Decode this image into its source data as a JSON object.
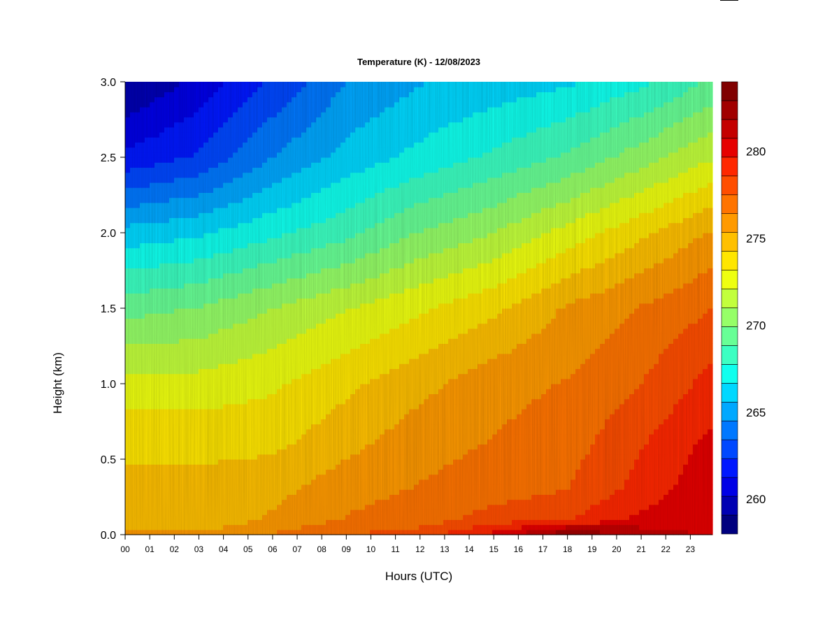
{
  "chart_data": {
    "type": "heatmap",
    "title": "Temperature (K) - 12/08/2023",
    "xlabel": "Hours (UTC)",
    "ylabel": "Height (km)",
    "x_ticks": [
      "00",
      "01",
      "02",
      "03",
      "04",
      "05",
      "06",
      "07",
      "08",
      "09",
      "10",
      "11",
      "12",
      "13",
      "14",
      "15",
      "16",
      "17",
      "18",
      "19",
      "20",
      "21",
      "22",
      "23"
    ],
    "y_ticks": [
      "0.0",
      "0.5",
      "1.0",
      "1.5",
      "2.0",
      "2.5",
      "3.0"
    ],
    "xlim": [
      0,
      23.9
    ],
    "ylim": [
      0,
      3.0
    ],
    "colorbar": {
      "label_values": [
        "260",
        "265",
        "270",
        "275",
        "280"
      ],
      "range": [
        258,
        284
      ],
      "colors": [
        "#00007f",
        "#0000b3",
        "#0000e6",
        "#0018ff",
        "#0048ff",
        "#0078ff",
        "#00a8ff",
        "#00d8ff",
        "#10ffee",
        "#3cffc2",
        "#68ff96",
        "#96ff68",
        "#c2ff3c",
        "#eeff10",
        "#ffe600",
        "#ffc000",
        "#ff9a00",
        "#ff7400",
        "#ff4e00",
        "#ff2800",
        "#e60000",
        "#c40000",
        "#a10000",
        "#800000"
      ]
    },
    "hours": [
      0,
      3,
      6,
      9,
      12,
      15,
      18,
      21,
      23.9
    ],
    "heights_km": [
      0.0,
      0.1,
      0.3,
      0.6,
      1.0,
      1.5,
      2.0,
      2.5,
      3.0
    ],
    "values_K": [
      [
        275.5,
        275.5,
        276.5,
        277.5,
        278.0,
        280.0,
        283.0,
        281.5,
        280.5
      ],
      [
        275.0,
        274.5,
        275.5,
        276.5,
        277.0,
        278.0,
        278.5,
        280.0,
        280.5
      ],
      [
        274.5,
        274.5,
        275.0,
        276.0,
        276.5,
        277.0,
        277.5,
        279.0,
        280.5
      ],
      [
        274.0,
        274.0,
        274.0,
        275.0,
        276.0,
        276.5,
        277.0,
        278.5,
        280.0
      ],
      [
        272.5,
        272.5,
        273.0,
        274.0,
        275.0,
        276.0,
        276.5,
        277.5,
        279.0
      ],
      [
        269.5,
        270.0,
        271.0,
        272.0,
        273.0,
        274.0,
        275.5,
        276.5,
        277.5
      ],
      [
        266.0,
        266.5,
        267.5,
        268.5,
        270.0,
        271.0,
        272.5,
        274.0,
        275.5
      ],
      [
        261.5,
        262.5,
        264.5,
        266.0,
        267.0,
        268.0,
        269.0,
        270.5,
        272.0
      ],
      [
        259.0,
        260.5,
        262.5,
        264.5,
        265.5,
        266.0,
        266.5,
        267.5,
        269.0
      ]
    ]
  }
}
